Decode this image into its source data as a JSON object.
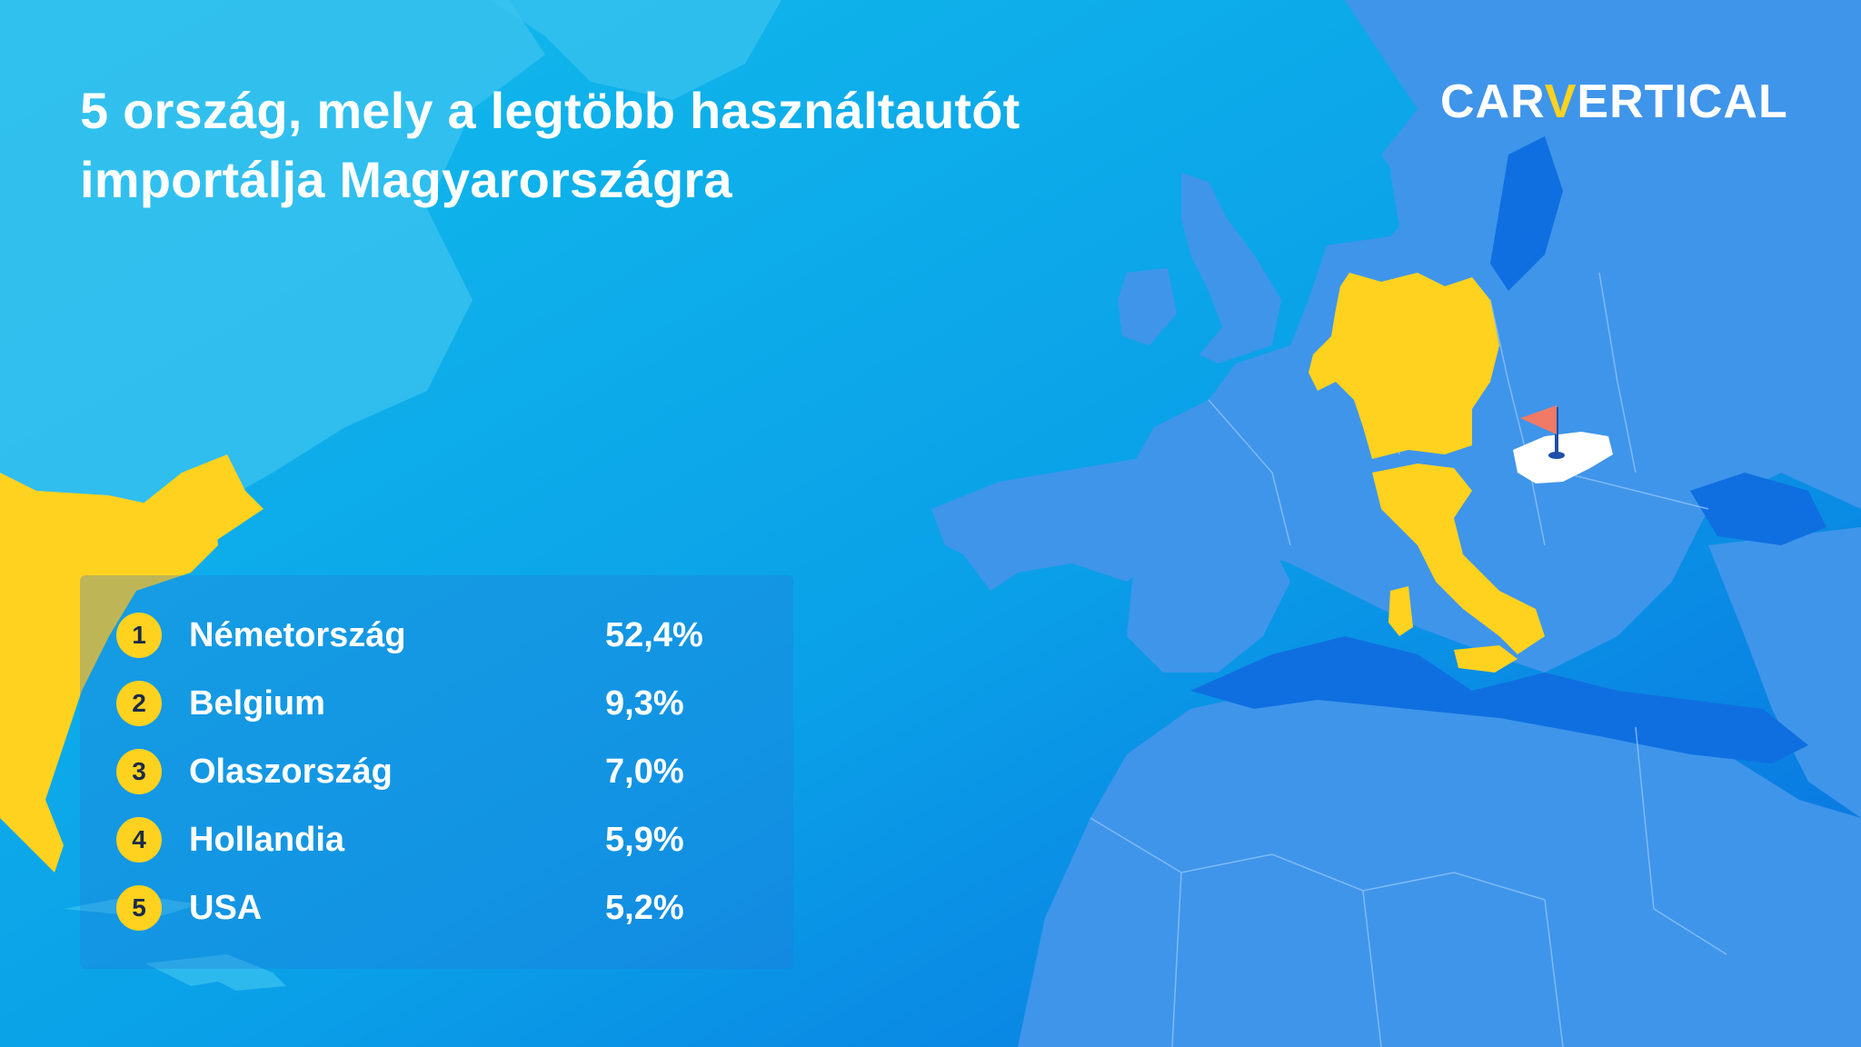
{
  "title_lines": [
    "5 ország, mely a legtöbb használtautót",
    "importálja Magyarországra"
  ],
  "logo": {
    "part1": "CAR",
    "part2": "V",
    "part3": "ERTICAL"
  },
  "ranking": [
    {
      "rank": "1",
      "country": "Németország",
      "share": "52,4%"
    },
    {
      "rank": "2",
      "country": "Belgium",
      "share": "9,3%"
    },
    {
      "rank": "3",
      "country": "Olaszország",
      "share": "7,0%"
    },
    {
      "rank": "4",
      "country": "Hollandia",
      "share": "5,9%"
    },
    {
      "rank": "5",
      "country": "USA",
      "share": "5,2%"
    }
  ],
  "colors": {
    "background_top": "#12b7ea",
    "background_bottom": "#0a78e6",
    "land": "#3f95ea",
    "highlight": "#ffd21f",
    "hungary": "#ffffff",
    "flag": "#f07a66",
    "border": "#8fc3f7"
  }
}
